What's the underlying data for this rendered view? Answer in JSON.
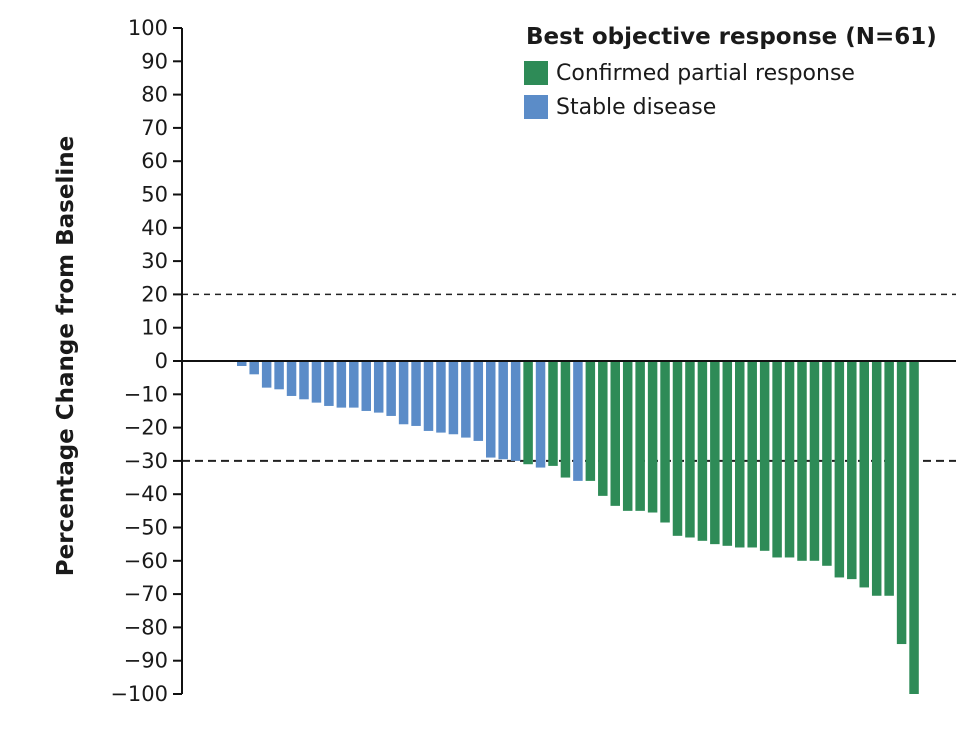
{
  "chart_data": {
    "type": "bar",
    "ylabel": "Percentage Change from Baseline",
    "xlabel": "",
    "ylim": [
      -100,
      100
    ],
    "yticks": [
      100,
      90,
      80,
      70,
      60,
      50,
      40,
      30,
      20,
      10,
      0,
      -10,
      -20,
      -30,
      -40,
      -50,
      -60,
      -70,
      -80,
      -90,
      -100
    ],
    "ytick_labels": [
      "100",
      "90",
      "80",
      "70",
      "60",
      "50",
      "40",
      "30",
      "20",
      "10",
      "0",
      "−10",
      "−20",
      "−30",
      "−40",
      "−50",
      "−60",
      "−70",
      "−80",
      "−90",
      "−100"
    ],
    "reference_lines": [
      20,
      -30
    ],
    "legend": {
      "title": "Best objective response (N=61)",
      "placement": "top-right",
      "entries": [
        {
          "label": "Confirmed partial response",
          "color": "#2e8b57"
        },
        {
          "label": "Stable disease",
          "color": "#5b8cc8"
        }
      ]
    },
    "series_colors": {
      "PR": "#2e8b57",
      "SD": "#5b8cc8"
    },
    "bars": [
      {
        "value": -1.5,
        "category": "SD"
      },
      {
        "value": -4,
        "category": "SD"
      },
      {
        "value": -8,
        "category": "SD"
      },
      {
        "value": -8.5,
        "category": "SD"
      },
      {
        "value": -10.5,
        "category": "SD"
      },
      {
        "value": -11.5,
        "category": "SD"
      },
      {
        "value": -12.5,
        "category": "SD"
      },
      {
        "value": -13.5,
        "category": "SD"
      },
      {
        "value": -14,
        "category": "SD"
      },
      {
        "value": -14,
        "category": "SD"
      },
      {
        "value": -15,
        "category": "SD"
      },
      {
        "value": -15.5,
        "category": "SD"
      },
      {
        "value": -16.5,
        "category": "SD"
      },
      {
        "value": -19,
        "category": "SD"
      },
      {
        "value": -19.5,
        "category": "SD"
      },
      {
        "value": -21,
        "category": "SD"
      },
      {
        "value": -21.5,
        "category": "SD"
      },
      {
        "value": -22,
        "category": "SD"
      },
      {
        "value": -23,
        "category": "SD"
      },
      {
        "value": -24,
        "category": "SD"
      },
      {
        "value": -29,
        "category": "SD"
      },
      {
        "value": -29.5,
        "category": "SD"
      },
      {
        "value": -30,
        "category": "SD"
      },
      {
        "value": -31,
        "category": "PR"
      },
      {
        "value": -32,
        "category": "SD"
      },
      {
        "value": -31.5,
        "category": "PR"
      },
      {
        "value": -35,
        "category": "PR"
      },
      {
        "value": -36,
        "category": "SD"
      },
      {
        "value": -36,
        "category": "PR"
      },
      {
        "value": -40.5,
        "category": "PR"
      },
      {
        "value": -43.5,
        "category": "PR"
      },
      {
        "value": -45,
        "category": "PR"
      },
      {
        "value": -45,
        "category": "PR"
      },
      {
        "value": -45.5,
        "category": "PR"
      },
      {
        "value": -48.5,
        "category": "PR"
      },
      {
        "value": -52.5,
        "category": "PR"
      },
      {
        "value": -53,
        "category": "PR"
      },
      {
        "value": -54,
        "category": "PR"
      },
      {
        "value": -55,
        "category": "PR"
      },
      {
        "value": -55.5,
        "category": "PR"
      },
      {
        "value": -56,
        "category": "PR"
      },
      {
        "value": -56,
        "category": "PR"
      },
      {
        "value": -57,
        "category": "PR"
      },
      {
        "value": -59,
        "category": "PR"
      },
      {
        "value": -59,
        "category": "PR"
      },
      {
        "value": -60,
        "category": "PR"
      },
      {
        "value": -60,
        "category": "PR"
      },
      {
        "value": -61.5,
        "category": "PR"
      },
      {
        "value": -65,
        "category": "PR"
      },
      {
        "value": -65.5,
        "category": "PR"
      },
      {
        "value": -68,
        "category": "PR"
      },
      {
        "value": -70.5,
        "category": "PR"
      },
      {
        "value": -70.5,
        "category": "PR"
      },
      {
        "value": -85,
        "category": "PR"
      },
      {
        "value": -100,
        "category": "PR"
      }
    ]
  }
}
